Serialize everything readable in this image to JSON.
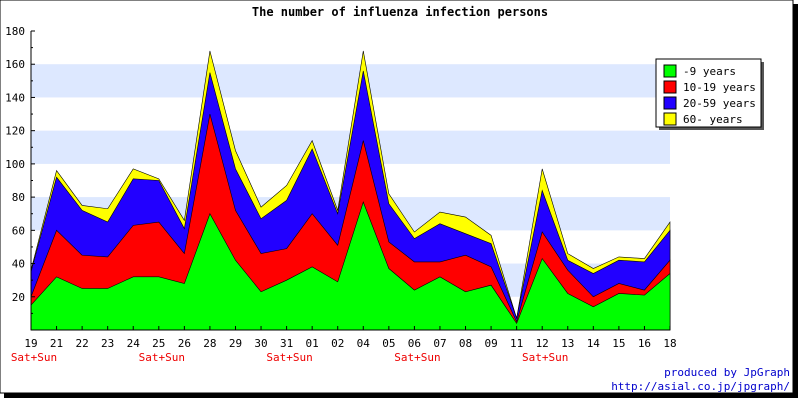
{
  "chart_data": {
    "type": "area",
    "stacked": true,
    "title": "The number of influenza infection persons",
    "xlabel": "",
    "ylabel": "",
    "ylim": [
      0,
      180
    ],
    "yticks": [
      20,
      40,
      60,
      80,
      100,
      120,
      140,
      160,
      180
    ],
    "grid": true,
    "legend_position": "top-right",
    "categories": [
      "19",
      "21",
      "22",
      "23",
      "24",
      "25",
      "26",
      "28",
      "29",
      "30",
      "31",
      "01",
      "02",
      "04",
      "05",
      "06",
      "07",
      "08",
      "09",
      "11",
      "12",
      "13",
      "14",
      "15",
      "16",
      "18"
    ],
    "weekend_label": "Sat+Sun",
    "weekend_indices": [
      0,
      5,
      10,
      15,
      20
    ],
    "series": [
      {
        "name": "-9 years",
        "color": "#00ff00",
        "values": [
          15,
          32,
          25,
          25,
          32,
          32,
          28,
          70,
          42,
          23,
          30,
          38,
          29,
          77,
          37,
          24,
          32,
          23,
          27,
          4,
          43,
          22,
          14,
          22,
          21,
          34
        ]
      },
      {
        "name": "10-19 years",
        "color": "#ff0000",
        "values": [
          5,
          28,
          20,
          19,
          31,
          33,
          18,
          60,
          30,
          23,
          19,
          32,
          22,
          37,
          16,
          17,
          9,
          22,
          11,
          1,
          16,
          14,
          6,
          6,
          3,
          8
        ]
      },
      {
        "name": "20-59 years",
        "color": "#2200ff",
        "values": [
          15,
          32,
          27,
          21,
          28,
          25,
          15,
          25,
          25,
          21,
          29,
          39,
          19,
          42,
          23,
          14,
          23,
          13,
          14,
          2,
          25,
          6,
          14,
          14,
          17,
          18
        ]
      },
      {
        "name": "60- years",
        "color": "#ffff00",
        "values": [
          1,
          4,
          3,
          8,
          6,
          1,
          5,
          13,
          11,
          7,
          9,
          5,
          2,
          12,
          6,
          4,
          7,
          10,
          5,
          0,
          13,
          4,
          3,
          2,
          2,
          5
        ]
      }
    ]
  },
  "credit": {
    "line1": "produced by JpGraph",
    "line2": "http://asial.co.jp/jpgraph/"
  }
}
